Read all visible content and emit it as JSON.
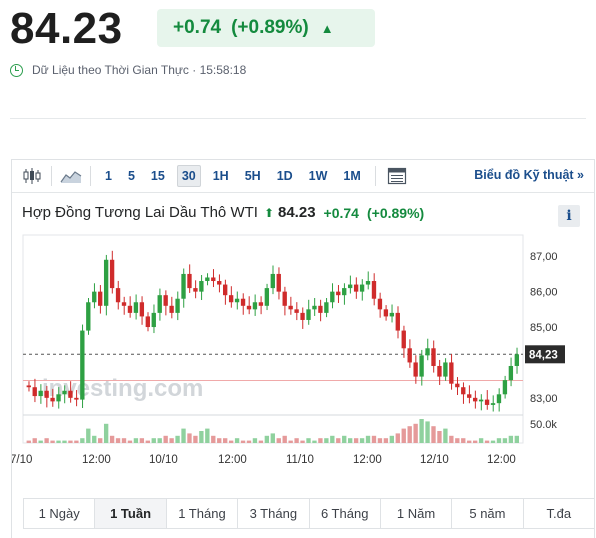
{
  "quote": {
    "price": "84.23",
    "change": "+0.74",
    "change_pct": "(+0.89%)",
    "realtime_label": "Dữ Liệu theo Thời Gian Thực · 15:58:18"
  },
  "toolbar": {
    "timeframes": [
      "1",
      "5",
      "15",
      "30",
      "1H",
      "5H",
      "1D",
      "1W",
      "1M"
    ],
    "active_timeframe": "30",
    "technical_label": "Biểu đồ Kỹ thuật »",
    "icons": [
      "candlestick-icon",
      "area-chart-icon",
      "calendar-table-icon"
    ]
  },
  "chart_header": {
    "name": "Hợp Đồng Tương Lai Dầu Thô WTI",
    "price": "84.23",
    "change": "+0.74",
    "change_pct": "(+0.89%)",
    "info": "i"
  },
  "chart_data": {
    "type": "candlestick",
    "y_ticks": [
      "87,00",
      "86,00",
      "85,00",
      "83,00"
    ],
    "y_tick_values": [
      87,
      86,
      85,
      83
    ],
    "ylim": [
      82.6,
      87.6
    ],
    "current_value": 84.23,
    "current_label": "84,23",
    "prev_close": 83.49,
    "volume_tick": "50.0k",
    "x_ticks": [
      "7/10",
      "12:00",
      "10/10",
      "12:00",
      "11/10",
      "12:00",
      "12/10",
      "12:00"
    ],
    "watermark": "investing.com",
    "close_path": [
      83.3,
      83.05,
      83.2,
      83.0,
      82.9,
      83.1,
      83.2,
      83.0,
      82.95,
      84.9,
      85.7,
      86.0,
      85.6,
      86.9,
      86.1,
      85.7,
      85.6,
      85.4,
      85.7,
      85.3,
      85.0,
      85.4,
      85.9,
      85.6,
      85.4,
      85.8,
      86.5,
      86.1,
      86.0,
      86.3,
      86.4,
      86.3,
      86.2,
      85.9,
      85.7,
      85.8,
      85.6,
      85.5,
      85.7,
      85.6,
      86.1,
      86.5,
      86.0,
      85.6,
      85.5,
      85.4,
      85.2,
      85.5,
      85.6,
      85.4,
      85.7,
      86.0,
      85.9,
      86.1,
      86.2,
      86.0,
      86.2,
      86.3,
      85.8,
      85.5,
      85.3,
      85.4,
      84.9,
      84.4,
      84.0,
      83.6,
      84.2,
      84.4,
      83.9,
      83.6,
      84.0,
      83.4,
      83.3,
      83.1,
      83.0,
      82.9,
      82.95,
      82.8,
      82.85,
      83.1,
      83.5,
      83.9,
      84.23
    ],
    "volumes": [
      1,
      2,
      1,
      2,
      1,
      1,
      1,
      1,
      1,
      2,
      6,
      3,
      2,
      8,
      3,
      2,
      2,
      1,
      2,
      2,
      1,
      2,
      2,
      3,
      2,
      3,
      6,
      4,
      3,
      5,
      6,
      3,
      2,
      2,
      1,
      2,
      1,
      1,
      2,
      1,
      3,
      4,
      2,
      3,
      1,
      2,
      1,
      2,
      1,
      2,
      2,
      3,
      2,
      3,
      2,
      2,
      2,
      3,
      3,
      2,
      2,
      3,
      4,
      6,
      7,
      8,
      10,
      9,
      7,
      5,
      6,
      3,
      2,
      2,
      1,
      1,
      2,
      1,
      1,
      2,
      2,
      3,
      3
    ]
  },
  "ranges": {
    "items": [
      "1 Ngày",
      "1 Tuần",
      "1 Tháng",
      "3 Tháng",
      "6 Tháng",
      "1 Năm",
      "5 năm",
      "T.đa"
    ],
    "active": "1 Tuần"
  },
  "colors": {
    "up": "#2ea043",
    "down": "#cf2b2b",
    "accent": "#1b4e8c",
    "green_text": "#148a3e"
  }
}
